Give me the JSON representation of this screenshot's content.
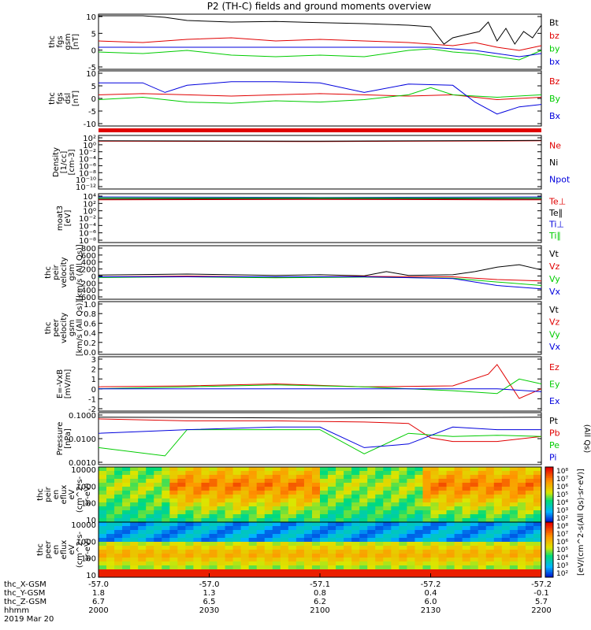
{
  "title": "P2 (TH-C) fields and ground moments overview",
  "colors": {
    "black": "#000000",
    "red": "#e00000",
    "green": "#00cc00",
    "blue": "#0000dd"
  },
  "panels": [
    {
      "id": "fgs_gsm",
      "ylabel": [
        "thc",
        "fgs",
        "gsm",
        "[nT]"
      ],
      "ticks": [
        "10",
        "5",
        "0",
        "-5"
      ],
      "legend": [
        {
          "text": "Bt",
          "color": "black"
        },
        {
          "text": "bz",
          "color": "red"
        },
        {
          "text": "by",
          "color": "green"
        },
        {
          "text": "bx",
          "color": "blue"
        }
      ]
    },
    {
      "id": "fgs_dsl",
      "ylabel": [
        "thc",
        "fgs",
        "dsl",
        "[nT]"
      ],
      "ticks": [
        "10",
        "5",
        "0",
        "-5",
        "-10"
      ],
      "legend": [
        {
          "text": "Bz",
          "color": "red"
        },
        {
          "text": "By",
          "color": "green"
        },
        {
          "text": "Bx",
          "color": "blue"
        }
      ]
    },
    {
      "id": "density",
      "ylabel": [
        "Density",
        "[1/cc]",
        "[cm-3]"
      ],
      "ticks": [
        "10²",
        "10⁰",
        "10⁻²",
        "10⁻⁴",
        "10⁻⁶",
        "10⁻⁸",
        "10⁻¹⁰",
        "10⁻¹²"
      ],
      "legend": [
        {
          "text": "Ne",
          "color": "red"
        },
        {
          "text": "Ni",
          "color": "black"
        },
        {
          "text": "Npot",
          "color": "blue"
        }
      ]
    },
    {
      "id": "temperature",
      "ylabel": [
        "moat3",
        "[eV]"
      ],
      "ticks": [
        "10⁴",
        "10²",
        "10⁰",
        "10⁻²",
        "10⁻⁴",
        "10⁻⁶",
        "10⁻⁸"
      ],
      "legend": [
        {
          "text": "Te⊥",
          "color": "red"
        },
        {
          "text": "Te∥",
          "color": "black"
        },
        {
          "text": "Ti⊥",
          "color": "blue"
        },
        {
          "text": "Ti∥",
          "color": "green"
        }
      ]
    },
    {
      "id": "peir_velocity",
      "ylabel": [
        "thc",
        "peir",
        "velocity",
        "gsm",
        "[km/s (All Qs)]"
      ],
      "ticks": [
        "800",
        "600",
        "400",
        "200",
        "0",
        "-200",
        "-400",
        "-600"
      ],
      "legend": [
        {
          "text": "Vt",
          "color": "black"
        },
        {
          "text": "Vz",
          "color": "red"
        },
        {
          "text": "Vy",
          "color": "green"
        },
        {
          "text": "Vx",
          "color": "blue"
        }
      ]
    },
    {
      "id": "peer_velocity",
      "ylabel": [
        "thc",
        "peer",
        "velocity",
        "gsm",
        "[km/s (All Qs)]"
      ],
      "ticks": [
        "1.0",
        "0.8",
        "0.6",
        "0.4",
        "0.2",
        "0.0"
      ],
      "legend": [
        {
          "text": "Vt",
          "color": "black"
        },
        {
          "text": "Vz",
          "color": "red"
        },
        {
          "text": "Vy",
          "color": "green"
        },
        {
          "text": "Vx",
          "color": "blue"
        }
      ]
    },
    {
      "id": "efield",
      "ylabel": [
        "E=-VxB",
        "[mV/m]"
      ],
      "ticks": [
        "3",
        "2",
        "1",
        "0",
        "-1",
        "-2"
      ],
      "legend": [
        {
          "text": "Ez",
          "color": "red"
        },
        {
          "text": "Ey",
          "color": "green"
        },
        {
          "text": "Ex",
          "color": "blue"
        }
      ]
    },
    {
      "id": "pressure",
      "ylabel": [
        "Pressure",
        "[nPa]"
      ],
      "ticks": [
        "0.1000",
        "0.0100",
        "0.0010"
      ],
      "legend": [
        {
          "text": "Pt",
          "color": "black"
        },
        {
          "text": "Pb",
          "color": "red"
        },
        {
          "text": "Pe",
          "color": "green"
        },
        {
          "text": "Pi",
          "color": "blue"
        }
      ],
      "right_label": "(All Qs)"
    },
    {
      "id": "peir_eflux",
      "ylabel": [
        "thc",
        "peir",
        "en",
        "eflux",
        "eV",
        "(cm^2-s-",
        "sr-eV)"
      ],
      "ticks": [
        "10000",
        "1000",
        "100",
        "10"
      ]
    },
    {
      "id": "peer_eflux",
      "ylabel": [
        "thc",
        "peer",
        "en",
        "eflux",
        "eV",
        "(cm^2-s-",
        "sr-eV)"
      ],
      "ticks": [
        "10000",
        "1000",
        "100",
        "10"
      ]
    }
  ],
  "colorbar": {
    "ticks": [
      "10⁸",
      "10⁷",
      "10⁶",
      "10⁵",
      "10⁴",
      "10³",
      "10²"
    ],
    "label": "[eV/(cm^2-s(All Qs)·sr·eV)]"
  },
  "x_axis": {
    "row_labels": [
      "thc_X-GSM",
      "thc_Y-GSM",
      "thc_Z-GSM",
      "hhmm",
      "2019 Mar 20"
    ],
    "columns": [
      [
        "-57.0",
        "1.8",
        "6.7",
        "2000"
      ],
      [
        "-57.0",
        "1.3",
        "6.5",
        "2030"
      ],
      [
        "-57.1",
        "0.8",
        "6.2",
        "2100"
      ],
      [
        "-57.2",
        "0.4",
        "6.0",
        "2130"
      ],
      [
        "-57.2",
        "-0.1",
        "5.7",
        "2200"
      ]
    ]
  },
  "chart_data": [
    {
      "type": "line",
      "title": "P2 (TH-C) fields and ground moments overview",
      "panel": "fgs_gsm",
      "ylabel": "thc fgs gsm [nT]",
      "ylim": [
        -7,
        10.5
      ],
      "x_range": [
        "2000",
        "2200"
      ],
      "series": [
        {
          "name": "Bt",
          "x": [
            0,
            0.05,
            0.1,
            0.15,
            0.2,
            0.3,
            0.4,
            0.5,
            0.6,
            0.7,
            0.75,
            0.78,
            0.8,
            0.83,
            0.86,
            0.88,
            0.9,
            0.92,
            0.94,
            0.96,
            0.98,
            1.0
          ],
          "y": [
            10,
            10,
            10,
            9.5,
            8.5,
            8.0,
            8.2,
            7.8,
            7.5,
            7.0,
            6.5,
            1.0,
            3.0,
            4.0,
            5.0,
            8.0,
            2.0,
            6.0,
            1.0,
            5.0,
            3.0,
            7.0
          ]
        },
        {
          "name": "bz",
          "x": [
            0,
            0.1,
            0.2,
            0.3,
            0.4,
            0.5,
            0.6,
            0.7,
            0.75,
            0.8,
            0.85,
            0.9,
            0.95,
            1.0
          ],
          "y": [
            2.0,
            1.5,
            2.5,
            3.0,
            2.0,
            2.5,
            2.0,
            1.5,
            1.0,
            0.5,
            1.5,
            0.0,
            -1.0,
            0.5
          ]
        },
        {
          "name": "by",
          "x": [
            0,
            0.1,
            0.2,
            0.3,
            0.4,
            0.5,
            0.6,
            0.7,
            0.75,
            0.8,
            0.85,
            0.9,
            0.95,
            1.0
          ],
          "y": [
            -1.5,
            -2.0,
            -1.0,
            -2.5,
            -3.0,
            -2.5,
            -3.0,
            -1.0,
            -0.5,
            -1.5,
            -2.0,
            -3.0,
            -4.0,
            -1.0
          ]
        },
        {
          "name": "bx",
          "x": [
            0,
            0.2,
            0.4,
            0.6,
            0.75,
            0.8,
            0.85,
            0.9,
            0.95,
            1.0
          ],
          "y": [
            0,
            0,
            0,
            0,
            0,
            -0.5,
            -1.0,
            -2.0,
            -3.0,
            -2.0
          ]
        }
      ]
    },
    {
      "type": "line",
      "panel": "fgs_dsl",
      "ylabel": "thc fgs dsl [nT]",
      "ylim": [
        -13,
        10
      ],
      "series": [
        {
          "name": "Bz",
          "x": [
            0,
            0.1,
            0.2,
            0.3,
            0.4,
            0.5,
            0.6,
            0.7,
            0.8,
            0.9,
            1.0
          ],
          "y": [
            0,
            0.5,
            0,
            -0.5,
            0,
            0.5,
            0,
            -0.5,
            0,
            -2.0,
            -1.0
          ]
        },
        {
          "name": "By",
          "x": [
            0,
            0.1,
            0.2,
            0.3,
            0.4,
            0.5,
            0.6,
            0.7,
            0.75,
            0.8,
            0.9,
            1.0
          ],
          "y": [
            -2.0,
            -1.0,
            -3.0,
            -3.5,
            -2.5,
            -3.0,
            -2.0,
            0.0,
            3.0,
            0.0,
            -1.0,
            0.0
          ]
        },
        {
          "name": "Bx",
          "x": [
            0,
            0.1,
            0.15,
            0.2,
            0.3,
            0.4,
            0.5,
            0.6,
            0.7,
            0.8,
            0.85,
            0.9,
            0.95,
            1.0
          ],
          "y": [
            5.0,
            5.0,
            1.0,
            4.0,
            5.5,
            5.5,
            5.0,
            1.0,
            4.5,
            4.0,
            -3.0,
            -8.0,
            -5.0,
            -4.0
          ]
        }
      ]
    },
    {
      "type": "line",
      "panel": "density",
      "ylabel": "Density [1/cc] [cm-3]",
      "ylim": [
        -12,
        2
      ],
      "yscale": "log",
      "series": [
        {
          "name": "Ne",
          "x": [
            0,
            0.5,
            1.0
          ],
          "y": [
            0.5,
            0.4,
            0.6
          ]
        },
        {
          "name": "Ni",
          "x": [
            0,
            0.5,
            1.0
          ],
          "y": [
            0.6,
            0.5,
            0.7
          ]
        }
      ]
    },
    {
      "type": "line",
      "panel": "temperature",
      "ylabel": "moat3 [eV]",
      "ylim": [
        -8,
        4
      ],
      "yscale": "log",
      "series": [
        {
          "name": "Te⊥",
          "x": [
            0,
            0.5,
            1.0
          ],
          "y": [
            2.5,
            2.6,
            2.5
          ]
        },
        {
          "name": "Te∥",
          "x": [
            0,
            0.5,
            1.0
          ],
          "y": [
            2.7,
            2.8,
            2.7
          ]
        },
        {
          "name": "Ti⊥",
          "x": [
            0,
            0.5,
            1.0
          ],
          "y": [
            3.2,
            3.1,
            3.2
          ]
        },
        {
          "name": "Ti∥",
          "x": [
            0,
            0.5,
            1.0
          ],
          "y": [
            3.0,
            3.0,
            3.0
          ]
        }
      ]
    },
    {
      "type": "line",
      "panel": "peir_velocity",
      "ylabel": "thc peir velocity gsm [km/s (All Qs)]",
      "ylim": [
        -650,
        900
      ],
      "series": [
        {
          "name": "Vt",
          "x": [
            0,
            0.2,
            0.4,
            0.5,
            0.6,
            0.65,
            0.7,
            0.8,
            0.85,
            0.9,
            0.95,
            1.0
          ],
          "y": [
            50,
            80,
            40,
            60,
            30,
            150,
            40,
            60,
            150,
            280,
            350,
            200
          ]
        },
        {
          "name": "Vz",
          "x": [
            0,
            0.2,
            0.4,
            0.6,
            0.8,
            0.9,
            1.0
          ],
          "y": [
            0,
            20,
            -10,
            10,
            0,
            -80,
            -120
          ]
        },
        {
          "name": "Vy",
          "x": [
            0,
            0.2,
            0.4,
            0.6,
            0.8,
            0.9,
            1.0
          ],
          "y": [
            -20,
            0,
            -30,
            -10,
            -40,
            -150,
            -250
          ]
        },
        {
          "name": "Vx",
          "x": [
            0,
            0.2,
            0.4,
            0.6,
            0.8,
            0.9,
            1.0
          ],
          "y": [
            0,
            0,
            0,
            0,
            -50,
            -250,
            -350
          ]
        }
      ]
    },
    {
      "type": "line",
      "panel": "efield",
      "ylabel": "E=-VxB [mV/m]",
      "ylim": [
        -2.3,
        3.3
      ],
      "series": [
        {
          "name": "Ez",
          "x": [
            0,
            0.2,
            0.4,
            0.6,
            0.8,
            0.88,
            0.9,
            0.95,
            1.0
          ],
          "y": [
            0.2,
            0.3,
            0.5,
            0.2,
            0.3,
            1.5,
            2.5,
            -1.0,
            0.0
          ]
        },
        {
          "name": "Ey",
          "x": [
            0,
            0.2,
            0.4,
            0.6,
            0.8,
            0.9,
            0.95,
            1.0
          ],
          "y": [
            0,
            0.2,
            0.4,
            0.2,
            -0.2,
            -0.5,
            1.0,
            0.5
          ]
        },
        {
          "name": "Ex",
          "x": [
            0,
            0.5,
            0.9,
            1.0
          ],
          "y": [
            0,
            0,
            0,
            -0.3
          ]
        }
      ]
    },
    {
      "type": "line",
      "panel": "pressure",
      "ylabel": "Pressure [nPa]",
      "ylim": [
        0.0003,
        0.1
      ],
      "yscale": "log",
      "series": [
        {
          "name": "Pt",
          "x": [
            0,
            0.5,
            1.0
          ],
          "y": [
            0.06,
            0.055,
            0.06
          ]
        },
        {
          "name": "Pb",
          "x": [
            0,
            0.2,
            0.4,
            0.6,
            0.7,
            0.75,
            0.8,
            0.9,
            1.0
          ],
          "y": [
            0.05,
            0.04,
            0.04,
            0.035,
            0.03,
            0.006,
            0.004,
            0.004,
            0.007
          ]
        },
        {
          "name": "Pe",
          "x": [
            0,
            0.15,
            0.2,
            0.4,
            0.5,
            0.6,
            0.7,
            0.8,
            0.9,
            1.0
          ],
          "y": [
            0.002,
            0.0008,
            0.015,
            0.015,
            0.015,
            0.001,
            0.01,
            0.007,
            0.008,
            0.007
          ]
        },
        {
          "name": "Pi",
          "x": [
            0,
            0.2,
            0.4,
            0.5,
            0.6,
            0.7,
            0.8,
            0.9,
            1.0
          ],
          "y": [
            0.01,
            0.015,
            0.02,
            0.02,
            0.002,
            0.003,
            0.02,
            0.015,
            0.015
          ]
        }
      ]
    }
  ]
}
